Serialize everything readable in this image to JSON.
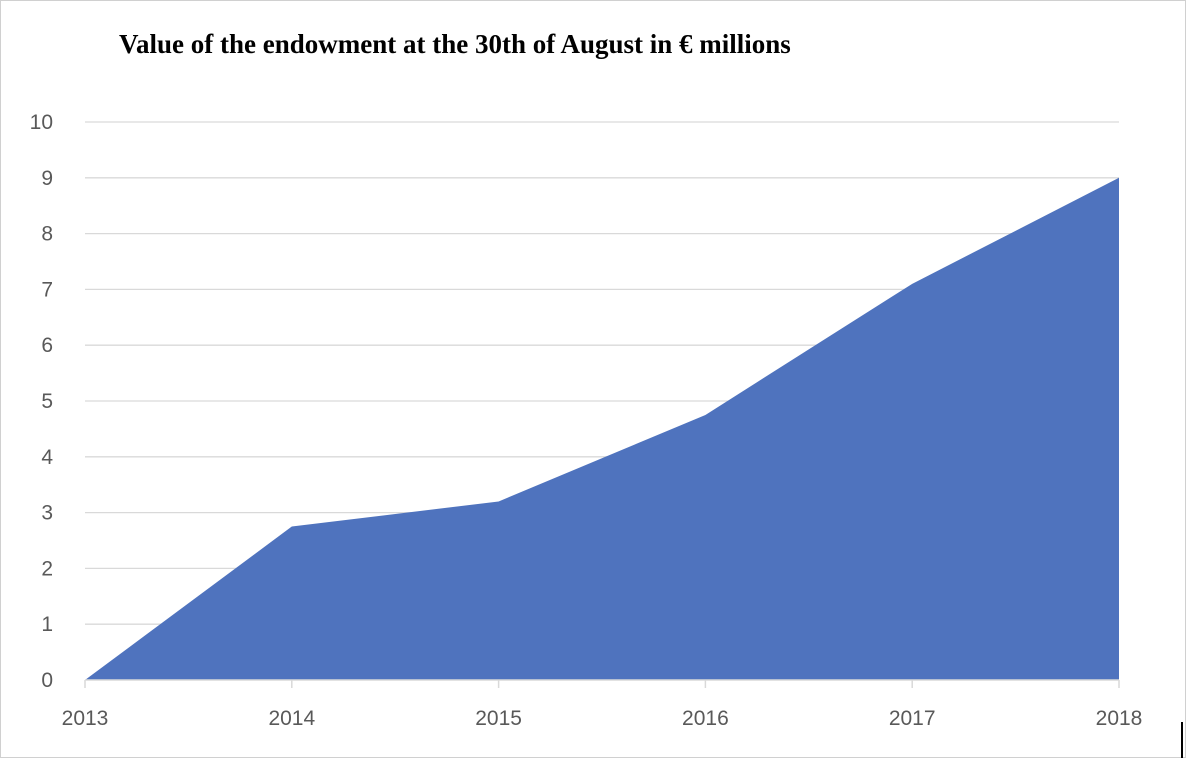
{
  "chart_data": {
    "type": "area",
    "title": "Value of the endowment at the 30th of August in € millions",
    "xlabel": "",
    "ylabel": "",
    "x": [
      "2013",
      "2014",
      "2015",
      "2016",
      "2017",
      "2018"
    ],
    "series": [
      {
        "values": [
          0,
          2.75,
          3.2,
          4.75,
          7.1,
          9.0
        ]
      }
    ],
    "ylim": [
      0,
      10
    ],
    "yticks": [
      "0",
      "1",
      "2",
      "3",
      "4",
      "5",
      "6",
      "7",
      "8",
      "9",
      "10"
    ],
    "grid": true,
    "legend": "none",
    "colors": {
      "area_fill": "#4f73be",
      "gridline": "#d9d9d9",
      "tick_text": "#595959"
    }
  }
}
